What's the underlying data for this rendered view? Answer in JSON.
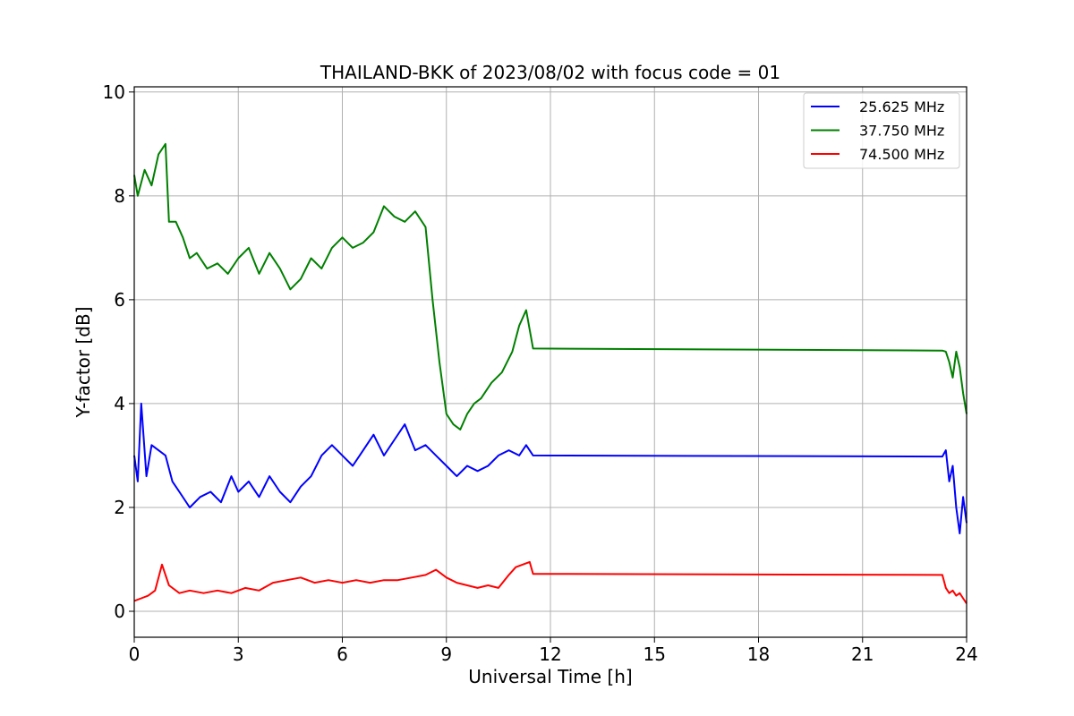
{
  "chart_data": {
    "type": "line",
    "title": "THAILAND-BKK of 2023/08/02 with focus code = 01",
    "xlabel": "Universal Time [h]",
    "ylabel": "Y-factor [dB]",
    "xlim": [
      0,
      24
    ],
    "ylim": [
      -0.5,
      10.1
    ],
    "xticks": [
      0,
      3,
      6,
      9,
      12,
      15,
      18,
      21,
      24
    ],
    "yticks": [
      0,
      2,
      4,
      6,
      8,
      10
    ],
    "xtick_labels": [
      "0",
      "3",
      "6",
      "9",
      "12",
      "15",
      "18",
      "21",
      "24"
    ],
    "ytick_labels": [
      "0",
      "2",
      "4",
      "6",
      "8",
      "10"
    ],
    "grid": true,
    "legend_position": "top-right",
    "series": [
      {
        "name": "25.625 MHz",
        "color": "#0000ff",
        "x": [
          0.0,
          0.1,
          0.2,
          0.35,
          0.5,
          0.7,
          0.9,
          1.1,
          1.3,
          1.6,
          1.9,
          2.2,
          2.5,
          2.8,
          3.0,
          3.3,
          3.6,
          3.9,
          4.2,
          4.5,
          4.8,
          5.1,
          5.4,
          5.7,
          6.0,
          6.3,
          6.6,
          6.9,
          7.2,
          7.5,
          7.8,
          8.1,
          8.4,
          8.7,
          9.0,
          9.3,
          9.6,
          9.9,
          10.2,
          10.5,
          10.8,
          11.1,
          11.3,
          11.5,
          23.3,
          23.4,
          23.5,
          23.6,
          23.7,
          23.8,
          23.9,
          24.0
        ],
        "y": [
          3.0,
          2.5,
          4.0,
          2.6,
          3.2,
          3.1,
          3.0,
          2.5,
          2.3,
          2.0,
          2.2,
          2.3,
          2.1,
          2.6,
          2.3,
          2.5,
          2.2,
          2.6,
          2.3,
          2.1,
          2.4,
          2.6,
          3.0,
          3.2,
          3.0,
          2.8,
          3.1,
          3.4,
          3.0,
          3.3,
          3.6,
          3.1,
          3.2,
          3.0,
          2.8,
          2.6,
          2.8,
          2.7,
          2.8,
          3.0,
          3.1,
          3.0,
          3.2,
          3.0,
          2.98,
          3.1,
          2.5,
          2.8,
          2.0,
          1.5,
          2.2,
          1.7
        ]
      },
      {
        "name": "37.750 MHz",
        "color": "#008000",
        "x": [
          0.0,
          0.1,
          0.3,
          0.5,
          0.7,
          0.9,
          1.0,
          1.2,
          1.4,
          1.6,
          1.8,
          2.1,
          2.4,
          2.7,
          3.0,
          3.3,
          3.6,
          3.9,
          4.2,
          4.5,
          4.8,
          5.1,
          5.4,
          5.7,
          6.0,
          6.3,
          6.6,
          6.9,
          7.2,
          7.5,
          7.8,
          8.1,
          8.4,
          8.6,
          8.8,
          9.0,
          9.2,
          9.4,
          9.6,
          9.8,
          10.0,
          10.3,
          10.6,
          10.9,
          11.1,
          11.3,
          11.5,
          23.3,
          23.4,
          23.5,
          23.6,
          23.7,
          23.8,
          23.9,
          24.0
        ],
        "y": [
          8.4,
          8.0,
          8.5,
          8.2,
          8.8,
          9.0,
          7.5,
          7.5,
          7.2,
          6.8,
          6.9,
          6.6,
          6.7,
          6.5,
          6.8,
          7.0,
          6.5,
          6.9,
          6.6,
          6.2,
          6.4,
          6.8,
          6.6,
          7.0,
          7.2,
          7.0,
          7.1,
          7.3,
          7.8,
          7.6,
          7.5,
          7.7,
          7.4,
          6.0,
          4.8,
          3.8,
          3.6,
          3.5,
          3.8,
          4.0,
          4.1,
          4.4,
          4.6,
          5.0,
          5.5,
          5.8,
          5.06,
          5.02,
          5.0,
          4.8,
          4.5,
          5.0,
          4.7,
          4.2,
          3.8
        ]
      },
      {
        "name": "74.500 MHz",
        "color": "#ff0000",
        "x": [
          0.0,
          0.2,
          0.4,
          0.6,
          0.8,
          1.0,
          1.3,
          1.6,
          2.0,
          2.4,
          2.8,
          3.2,
          3.6,
          4.0,
          4.4,
          4.8,
          5.2,
          5.6,
          6.0,
          6.4,
          6.8,
          7.2,
          7.6,
          8.0,
          8.4,
          8.7,
          9.0,
          9.3,
          9.6,
          9.9,
          10.2,
          10.5,
          10.8,
          11.0,
          11.2,
          11.4,
          11.5,
          23.3,
          23.4,
          23.5,
          23.6,
          23.7,
          23.8,
          23.9,
          24.0
        ],
        "y": [
          0.2,
          0.25,
          0.3,
          0.4,
          0.9,
          0.5,
          0.35,
          0.4,
          0.35,
          0.4,
          0.35,
          0.45,
          0.4,
          0.55,
          0.6,
          0.65,
          0.55,
          0.6,
          0.55,
          0.6,
          0.55,
          0.6,
          0.6,
          0.65,
          0.7,
          0.8,
          0.65,
          0.55,
          0.5,
          0.45,
          0.5,
          0.45,
          0.7,
          0.85,
          0.9,
          0.95,
          0.72,
          0.7,
          0.45,
          0.35,
          0.4,
          0.3,
          0.35,
          0.25,
          0.15
        ]
      }
    ]
  }
}
